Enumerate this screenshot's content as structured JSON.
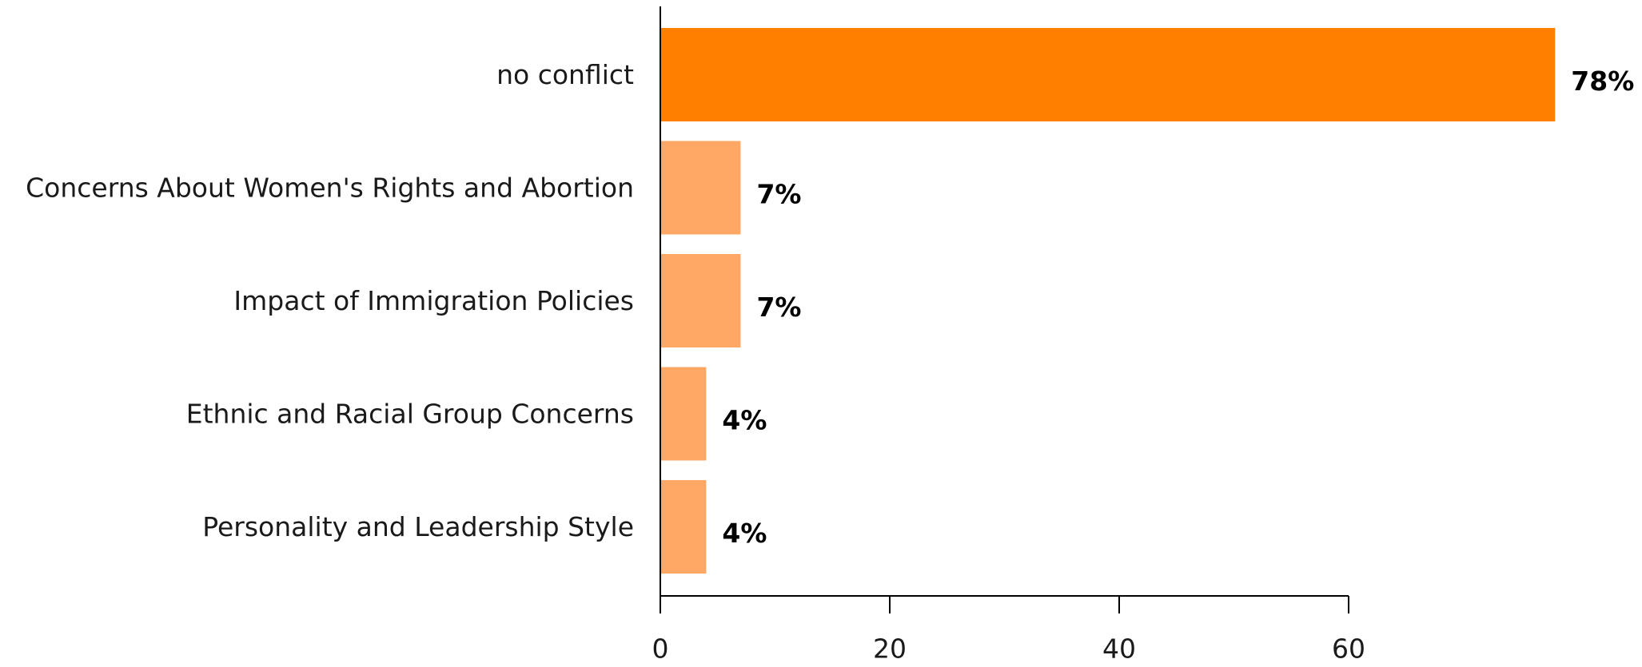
{
  "chart_data": {
    "type": "bar",
    "orientation": "horizontal",
    "title": "",
    "xlabel": "",
    "ylabel": "",
    "categories": [
      "no conflict",
      "Concerns About Women's Rights and Abortion",
      "Impact of Immigration Policies",
      "Ethnic and Racial Group Concerns",
      "Personality and Leadership Style"
    ],
    "values": [
      78,
      7,
      7,
      4,
      4
    ],
    "value_labels": [
      "78%",
      "7%",
      "7%",
      "4%",
      "4%"
    ],
    "xlim": [
      0,
      78
    ],
    "xticks": [
      0,
      20,
      40,
      60
    ],
    "xtick_labels": [
      "0",
      "20",
      "40",
      "60"
    ],
    "grid": false,
    "legend": "none",
    "colors": {
      "highlight": "#ff8000",
      "default": "#ffa866",
      "axis": "#000000",
      "text": "#1a1a1a"
    }
  }
}
